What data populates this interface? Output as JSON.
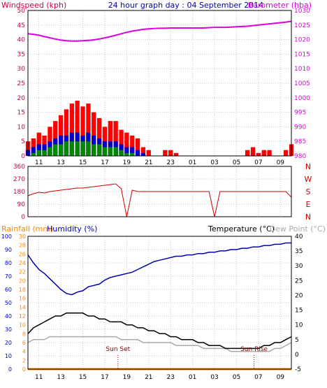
{
  "header": {
    "windspeed_label": "Windspeed (kph)",
    "title": "24 hour graph day : 04 September 2014",
    "barometer_label": "Barometer (hba)"
  },
  "time_ticks": [
    "11",
    "13",
    "15",
    "17",
    "19",
    "21",
    "23",
    "01",
    "03",
    "05",
    "07",
    "09"
  ],
  "colors": {
    "windspeed": "#ff0000",
    "gust_blue": "#0000cc",
    "calm_green": "#008800",
    "barometer": "#dd00dd",
    "direction": "#cc0000",
    "humidity": "#0000aa",
    "temperature": "#000000",
    "dewpoint": "#aaaaaa",
    "rainfall": "#ff8800",
    "axis_left_top": "#cc0044",
    "axis_humidity": "#0000cc",
    "grid": "#c8c8c8"
  },
  "chart_data": [
    {
      "type": "bar",
      "name": "windspeed-barometer",
      "ylabel_left": "Windspeed (kph)",
      "ylabel_right": "Barometer (hba)",
      "ylim_left": [
        0,
        50
      ],
      "ylim_right": [
        980,
        1030
      ],
      "yticks_left": [
        0,
        5,
        10,
        15,
        20,
        25,
        30,
        35,
        40,
        45,
        50
      ],
      "yticks_right": [
        980,
        985,
        990,
        995,
        1000,
        1005,
        1010,
        1015,
        1020,
        1025,
        1030
      ],
      "grid": true,
      "x": [
        10,
        10.5,
        11,
        11.5,
        12,
        12.5,
        13,
        13.5,
        14,
        14.5,
        15,
        15.5,
        16,
        16.5,
        17,
        17.5,
        18,
        18.5,
        19,
        19.5,
        20,
        20.5,
        21,
        21.5,
        22,
        22.5,
        23,
        23.5,
        24,
        24.5,
        25,
        25.5,
        26,
        26.5,
        27,
        27.5,
        28,
        28.5,
        29,
        29.5,
        30,
        30.5,
        31,
        31.5,
        32,
        32.5,
        33,
        33.5,
        34
      ],
      "series": [
        {
          "name": "windspeed",
          "values": [
            5,
            6,
            8,
            7,
            10,
            12,
            14,
            16,
            18,
            19,
            17,
            18,
            15,
            13,
            10,
            12,
            12,
            9,
            8,
            7,
            6,
            3,
            2,
            0,
            0,
            2,
            2,
            1,
            0,
            0,
            0,
            0,
            0,
            0,
            0,
            0,
            0,
            0,
            0,
            0,
            2,
            3,
            1,
            2,
            2,
            0,
            0,
            2,
            4
          ]
        },
        {
          "name": "gust",
          "values": [
            2,
            3,
            4,
            4,
            5,
            6,
            7,
            7,
            8,
            8,
            7,
            8,
            7,
            6,
            5,
            5,
            5,
            4,
            3,
            3,
            2,
            1,
            0,
            0,
            0,
            0,
            0,
            0,
            0,
            0,
            0,
            0,
            0,
            0,
            0,
            0,
            0,
            0,
            0,
            0,
            0,
            0,
            0,
            0,
            0,
            0,
            0,
            0,
            0
          ]
        },
        {
          "name": "calm",
          "values": [
            0,
            1,
            2,
            2,
            3,
            4,
            4,
            5,
            5,
            5,
            5,
            5,
            4,
            4,
            3,
            3,
            3,
            2,
            1,
            1,
            0,
            0,
            0,
            0,
            0,
            0,
            0,
            0,
            0,
            0,
            0,
            0,
            0,
            0,
            0,
            0,
            0,
            0,
            0,
            0,
            0,
            0,
            0,
            0,
            0,
            0,
            0,
            0,
            0
          ]
        },
        {
          "name": "barometer",
          "values": [
            1022.0,
            1021.8,
            1021.5,
            1021.0,
            1020.6,
            1020.2,
            1019.8,
            1019.6,
            1019.5,
            1019.5,
            1019.6,
            1019.7,
            1019.9,
            1020.2,
            1020.6,
            1021.0,
            1021.5,
            1022.0,
            1022.5,
            1022.9,
            1023.2,
            1023.5,
            1023.7,
            1023.8,
            1023.9,
            1023.9,
            1024.0,
            1024.0,
            1024.0,
            1024.0,
            1024.0,
            1024.0,
            1024.0,
            1024.1,
            1024.2,
            1024.2,
            1024.2,
            1024.3,
            1024.4,
            1024.5,
            1024.6,
            1024.8,
            1025.0,
            1025.2,
            1025.4,
            1025.6,
            1025.8,
            1026.0,
            1026.3
          ]
        }
      ]
    },
    {
      "type": "line",
      "name": "wind-direction",
      "ylim": [
        0,
        360
      ],
      "yticks": [
        0,
        45,
        90,
        135,
        180,
        225,
        270,
        315,
        360
      ],
      "compass_labels": [
        "N",
        "W",
        "S",
        "E",
        "N"
      ],
      "x": [
        10,
        10.5,
        11,
        11.5,
        12,
        12.5,
        13,
        13.5,
        14,
        14.5,
        15,
        15.5,
        16,
        16.5,
        17,
        17.5,
        18,
        18.5,
        19,
        19.5,
        20,
        20.5,
        21,
        21.5,
        22,
        22.5,
        23,
        23.5,
        24,
        24.5,
        25,
        25.5,
        26,
        26.5,
        27,
        27.5,
        28,
        28.5,
        29,
        29.5,
        30,
        30.5,
        31,
        31.5,
        32,
        32.5,
        33,
        33.5,
        34
      ],
      "series": [
        {
          "name": "direction",
          "values": [
            150,
            165,
            175,
            170,
            180,
            185,
            190,
            195,
            200,
            205,
            205,
            210,
            215,
            220,
            225,
            230,
            235,
            200,
            0,
            190,
            180,
            180,
            180,
            180,
            180,
            180,
            180,
            180,
            180,
            180,
            180,
            180,
            180,
            180,
            0,
            180,
            180,
            180,
            180,
            180,
            180,
            180,
            180,
            180,
            180,
            180,
            180,
            180,
            140
          ]
        }
      ]
    },
    {
      "type": "line",
      "name": "temperature-humidity",
      "ylabel_left": "Rainfall (mm)",
      "ylabel_humidity": "Humidity (%)",
      "ylabel_right": "Temperature (°C)",
      "ylabel_dewpoint": "Dew Point (°C)",
      "ylim_humidity": [
        0,
        100
      ],
      "ylim_rainfall": [
        0,
        30
      ],
      "ylim_temperature": [
        -5,
        40
      ],
      "yticks_humidity": [
        0,
        10,
        20,
        30,
        40,
        50,
        60,
        70,
        80,
        90,
        100
      ],
      "yticks_rainfall": [
        0,
        2,
        4,
        6,
        8,
        10,
        12,
        14,
        16,
        18,
        20,
        22,
        24,
        26,
        28,
        30
      ],
      "yticks_temperature": [
        -5,
        0,
        5,
        10,
        15,
        20,
        25,
        30,
        35,
        40
      ],
      "grid": true,
      "x": [
        10,
        10.5,
        11,
        11.5,
        12,
        12.5,
        13,
        13.5,
        14,
        14.5,
        15,
        15.5,
        16,
        16.5,
        17,
        17.5,
        18,
        18.5,
        19,
        19.5,
        20,
        20.5,
        21,
        21.5,
        22,
        22.5,
        23,
        23.5,
        24,
        24.5,
        25,
        25.5,
        26,
        26.5,
        27,
        27.5,
        28,
        28.5,
        29,
        29.5,
        30,
        30.5,
        31,
        31.5,
        32,
        32.5,
        33,
        33.5,
        34
      ],
      "series": [
        {
          "name": "humidity",
          "values": [
            86,
            80,
            75,
            72,
            68,
            64,
            60,
            57,
            56,
            58,
            59,
            62,
            63,
            64,
            67,
            69,
            70,
            71,
            72,
            73,
            75,
            77,
            79,
            81,
            82,
            83,
            84,
            85,
            85,
            86,
            86,
            87,
            87,
            88,
            88,
            89,
            89,
            90,
            90,
            91,
            91,
            92,
            92,
            93,
            93,
            94,
            94,
            95,
            95
          ]
        },
        {
          "name": "temperature",
          "values": [
            7,
            9,
            10,
            11,
            12,
            13,
            13,
            14,
            14,
            14,
            14,
            13,
            13,
            12,
            12,
            11,
            11,
            11,
            10,
            10,
            9,
            9,
            8,
            8,
            7,
            7,
            6,
            6,
            5,
            5,
            5,
            4,
            4,
            3,
            3,
            3,
            2,
            2,
            2,
            2,
            2,
            2,
            2,
            3,
            3,
            4,
            4,
            5,
            6
          ]
        },
        {
          "name": "dewpoint",
          "values": [
            4,
            5,
            5,
            5,
            6,
            6,
            6,
            6,
            6,
            6,
            6,
            6,
            6,
            6,
            6,
            6,
            6,
            5,
            5,
            5,
            5,
            4,
            4,
            4,
            4,
            4,
            4,
            3,
            3,
            3,
            3,
            3,
            2,
            2,
            2,
            2,
            2,
            1,
            1,
            1,
            1,
            1,
            1,
            1,
            1,
            2,
            2,
            3,
            4
          ]
        },
        {
          "name": "rainfall",
          "values": [
            0,
            0,
            0,
            0,
            0,
            0,
            0,
            0,
            0,
            0,
            0,
            0,
            0,
            0,
            0,
            0,
            0,
            0,
            0,
            0,
            0,
            0,
            0,
            0,
            0,
            0,
            0,
            0,
            0,
            0,
            0,
            0,
            0,
            0,
            0,
            0,
            0,
            0,
            0,
            0,
            0,
            0,
            0,
            0,
            0,
            0,
            0,
            0,
            0
          ]
        }
      ],
      "annotations": [
        {
          "text": "Sun Set",
          "x": 18.2
        },
        {
          "text": "Sun Rise",
          "x": 30.6
        }
      ]
    }
  ],
  "panel3": {
    "rainfall_label": "Rainfall (mm)",
    "humidity_label": "Humidity (%)",
    "temperature_label": "Temperature (°C)",
    "dewpoint_label": "Dew Point (°C)",
    "sunset_label": "Sun Set",
    "sunrise_label": "Sun Rise"
  }
}
